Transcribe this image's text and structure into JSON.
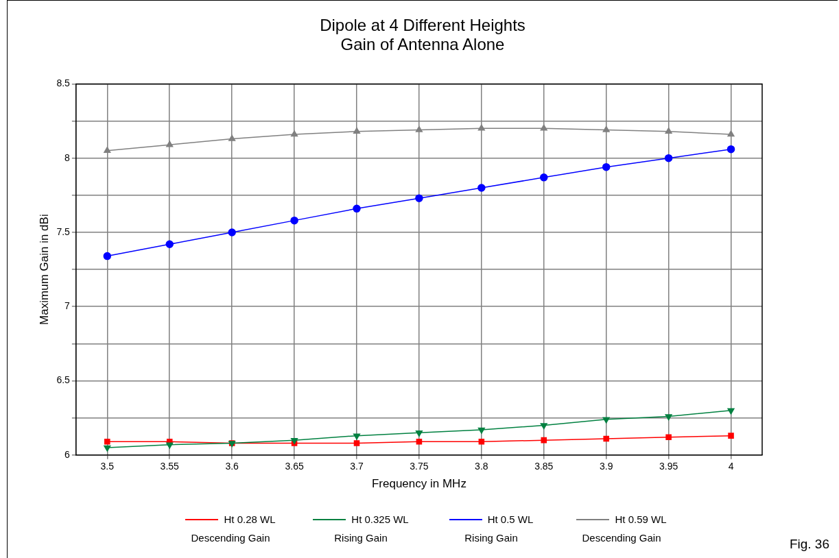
{
  "chart_data": {
    "type": "line",
    "title": "Dipole at 4 Different Heights",
    "subtitle": "Gain of Antenna Alone",
    "xlabel": "Frequency in MHz",
    "ylabel": "Maximum Gain in dBi",
    "x": [
      3.5,
      3.55,
      3.6,
      3.65,
      3.7,
      3.75,
      3.8,
      3.85,
      3.9,
      3.95,
      4
    ],
    "series": [
      {
        "name": "Ht 0.28 WL",
        "color": "#ff0000",
        "marker": "square",
        "values": [
          6.09,
          6.09,
          6.08,
          6.08,
          6.08,
          6.09,
          6.09,
          6.1,
          6.11,
          6.12,
          6.13
        ]
      },
      {
        "name": "Ht 0.325 WL",
        "color": "#008040",
        "marker": "triangle-down",
        "values": [
          6.05,
          6.07,
          6.08,
          6.1,
          6.13,
          6.15,
          6.17,
          6.2,
          6.24,
          6.26,
          6.3
        ]
      },
      {
        "name": "Ht 0.5 WL",
        "color": "#0000ff",
        "marker": "circle",
        "values": [
          7.34,
          7.42,
          7.5,
          7.58,
          7.66,
          7.73,
          7.8,
          7.87,
          7.94,
          8.0,
          8.06
        ]
      },
      {
        "name": "Ht 0.59 WL",
        "color": "#808080",
        "marker": "triangle",
        "values": [
          8.05,
          8.09,
          8.13,
          8.16,
          8.18,
          8.19,
          8.2,
          8.2,
          8.19,
          8.18,
          8.16
        ]
      }
    ],
    "xlim": [
      3.475,
      4.025
    ],
    "xticks": [
      3.5,
      3.55,
      3.6,
      3.65,
      3.7,
      3.75,
      3.8,
      3.85,
      3.9,
      3.95,
      4
    ],
    "ylim": [
      6,
      8.5
    ],
    "yticks": [
      6,
      {
        "value": 6.25,
        "label": null
      },
      6.5,
      {
        "value": 6.75,
        "label": null
      },
      7,
      {
        "value": 7.25,
        "label": null
      },
      7.5,
      {
        "value": 7.75,
        "label": null
      },
      8,
      {
        "value": 8.25,
        "label": null
      },
      8.5
    ],
    "grid": true,
    "legend": "bottom",
    "line_style": "solid",
    "annotations": [
      "Descending Gain",
      "Rising Gain",
      "Rising Gain",
      "Descending Gain",
      "Fig. 36"
    ]
  }
}
